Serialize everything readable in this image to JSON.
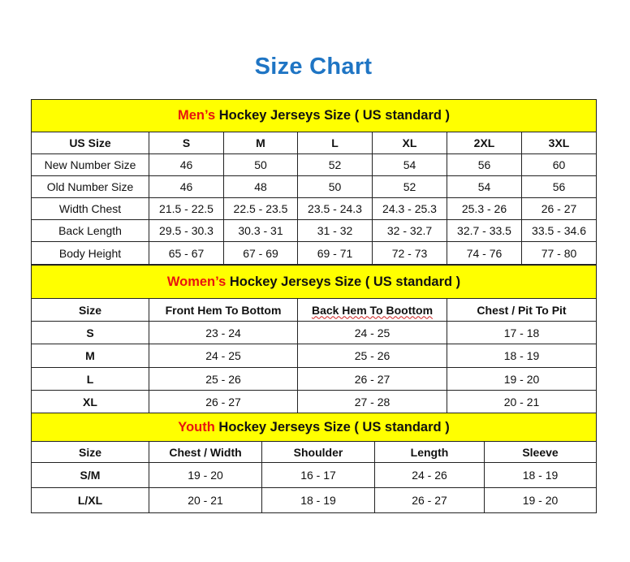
{
  "title": "Size Chart",
  "colors": {
    "title": "#1f75c4",
    "header_bg": "#ffff00",
    "accent": "#e8140f"
  },
  "men": {
    "heading_accent": "Men’s",
    "heading_rest": " Hockey Jerseys Size ( US standard )",
    "columns": [
      "US Size",
      "S",
      "M",
      "L",
      "XL",
      "2XL",
      "3XL"
    ],
    "rows": [
      [
        "New Number Size",
        "46",
        "50",
        "52",
        "54",
        "56",
        "60"
      ],
      [
        "Old Number Size",
        "46",
        "48",
        "50",
        "52",
        "54",
        "56"
      ],
      [
        "Width Chest",
        "21.5 - 22.5",
        "22.5 - 23.5",
        "23.5 - 24.3",
        "24.3 - 25.3",
        "25.3 - 26",
        "26 - 27"
      ],
      [
        "Back Length",
        "29.5 - 30.3",
        "30.3 - 31",
        "31 - 32",
        "32 - 32.7",
        "32.7 - 33.5",
        "33.5 - 34.6"
      ],
      [
        "Body Height",
        "65 - 67",
        "67 - 69",
        "69 - 71",
        "72 - 73",
        "74 - 76",
        "77 - 80"
      ]
    ]
  },
  "women": {
    "heading_accent": "Women’s",
    "heading_rest": " Hockey Jerseys Size ( US standard )",
    "columns": [
      "Size",
      "Front Hem To Bottom",
      "Back Hem To Boottom",
      "Chest / Pit To Pit"
    ],
    "rows": [
      [
        "S",
        "23 - 24",
        "24 - 25",
        "17 - 18"
      ],
      [
        "M",
        "24 - 25",
        "25 - 26",
        "18 - 19"
      ],
      [
        "L",
        "25 - 26",
        "26 - 27",
        "19 - 20"
      ],
      [
        "XL",
        "26 - 27",
        "27 - 28",
        "20 - 21"
      ]
    ]
  },
  "youth": {
    "heading_accent": "Youth",
    "heading_rest": " Hockey Jerseys Size ( US standard )",
    "columns": [
      "Size",
      "Chest / Width",
      "Shoulder",
      "Length",
      "Sleeve"
    ],
    "rows": [
      [
        "S/M",
        "19 - 20",
        "16 - 17",
        "24 - 26",
        "18 - 19"
      ],
      [
        "L/XL",
        "20 - 21",
        "18 - 19",
        "26 - 27",
        "19 - 20"
      ]
    ]
  }
}
